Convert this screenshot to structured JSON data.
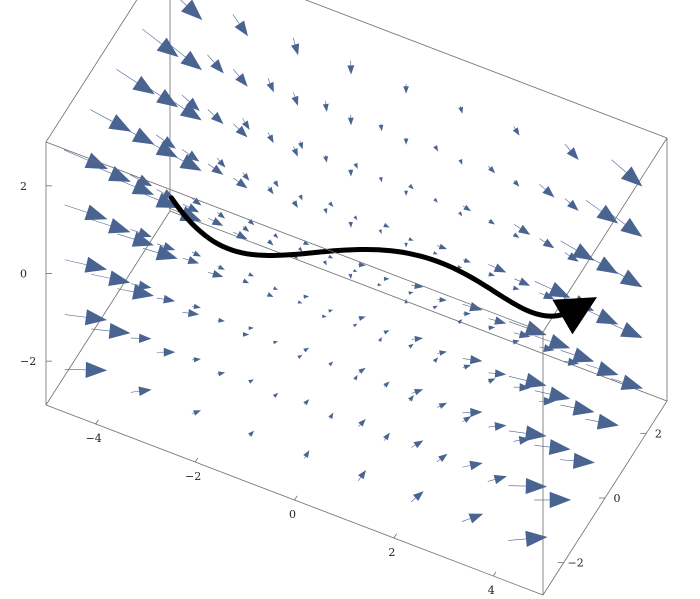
{
  "chart_data": {
    "type": "vector_field_3d",
    "title": "",
    "xlabel": "",
    "ylabel": "",
    "zlabel": "",
    "xlim": [
      -5,
      5
    ],
    "ylim": [
      -3,
      3
    ],
    "zlim": [
      -3,
      3
    ],
    "x_ticks": [
      {
        "value": -4,
        "label": "−4"
      },
      {
        "value": -2,
        "label": "−2"
      },
      {
        "value": 0,
        "label": "0"
      },
      {
        "value": 2,
        "label": "2"
      },
      {
        "value": 4,
        "label": "4"
      }
    ],
    "y_ticks": [
      {
        "value": -2,
        "label": "−2"
      },
      {
        "value": 0,
        "label": "0"
      },
      {
        "value": 2,
        "label": "2"
      }
    ],
    "z_ticks": [
      {
        "value": -2,
        "label": "−2"
      },
      {
        "value": 0,
        "label": "0"
      },
      {
        "value": 2,
        "label": "2"
      }
    ],
    "field": {
      "approx": "V = (1 + 0.4*x^2, sin(x) - y, -z + 0.3*x)",
      "grid_x": 9,
      "grid_y": 5,
      "grid_z": 5
    },
    "trajectory": {
      "description": "integral curve of the field",
      "x_range": [
        -3.6,
        4.5
      ]
    },
    "grid": false,
    "box": true,
    "colors": {
      "arrow": "#4a6491",
      "trajectory": "#000000",
      "box": "#6d6d6d"
    }
  }
}
